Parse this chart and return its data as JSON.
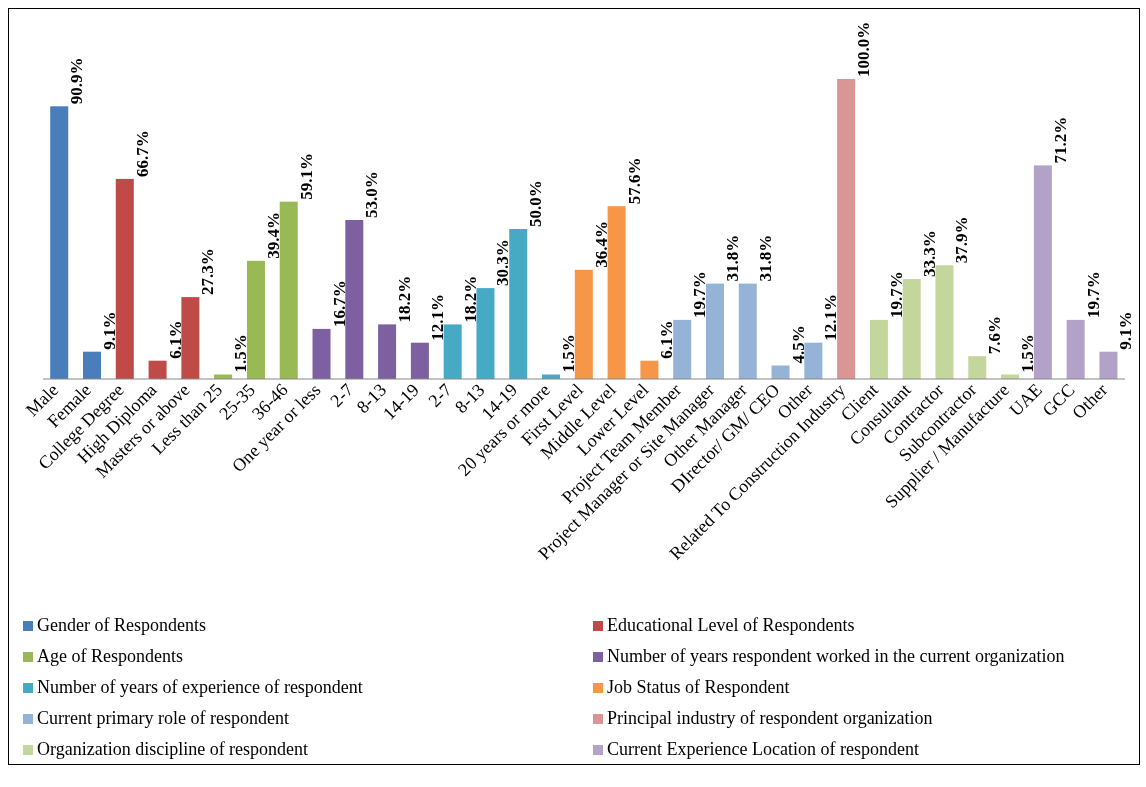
{
  "chart_data": {
    "type": "bar",
    "categories": [
      "Male",
      "Female",
      "College Degree",
      "High Diploma",
      "Masters or above",
      "Less than 25",
      "25-35",
      "36-46",
      "One year or less",
      "2-7",
      "8-13",
      "14-19",
      "2-7",
      "8-13",
      "14-19",
      "20 years or more",
      "First Level",
      "Middle Level",
      "Lower Level",
      "Project Team Member",
      "Project Manager or Site Manager",
      "Other Manager",
      "DIrector/ GM/ CEO",
      "Other",
      "Related To Construction Industry",
      "Client",
      "Consultant",
      "Contractor",
      "Subcontractor",
      "Supplier / Manufacture",
      "UAE",
      "GCC",
      "Other"
    ],
    "series": [
      {
        "name": "Gender of Respondents",
        "color": "#4a7ebb",
        "values": [
          90.9,
          9.1,
          null,
          null,
          null,
          null,
          null,
          null,
          null,
          null,
          null,
          null,
          null,
          null,
          null,
          null,
          null,
          null,
          null,
          null,
          null,
          null,
          null,
          null,
          null,
          null,
          null,
          null,
          null,
          null,
          null,
          null,
          null
        ],
        "value_labels": [
          "90.9%",
          "9.1%",
          null,
          null,
          null,
          null,
          null,
          null,
          null,
          null,
          null,
          null,
          null,
          null,
          null,
          null,
          null,
          null,
          null,
          null,
          null,
          null,
          null,
          null,
          null,
          null,
          null,
          null,
          null,
          null,
          null,
          null,
          null
        ]
      },
      {
        "name": "Educational Level of Respondents",
        "color": "#be4b48",
        "values": [
          null,
          null,
          66.7,
          6.1,
          27.3,
          null,
          null,
          null,
          null,
          null,
          null,
          null,
          null,
          null,
          null,
          null,
          null,
          null,
          null,
          null,
          null,
          null,
          null,
          null,
          null,
          null,
          null,
          null,
          null,
          null,
          null,
          null,
          null
        ],
        "value_labels": [
          null,
          null,
          "66.7%",
          "6.1%",
          "27.3%",
          null,
          null,
          null,
          null,
          null,
          null,
          null,
          null,
          null,
          null,
          null,
          null,
          null,
          null,
          null,
          null,
          null,
          null,
          null,
          null,
          null,
          null,
          null,
          null,
          null,
          null,
          null,
          null
        ]
      },
      {
        "name": "Age of Respondents",
        "color": "#98b954",
        "values": [
          null,
          null,
          null,
          null,
          null,
          1.5,
          39.4,
          59.1,
          null,
          null,
          null,
          null,
          null,
          null,
          null,
          null,
          null,
          null,
          null,
          null,
          null,
          null,
          null,
          null,
          null,
          null,
          null,
          null,
          null,
          null,
          null,
          null,
          null
        ],
        "value_labels": [
          null,
          null,
          null,
          null,
          null,
          "1.5%",
          "39.4%",
          "59.1%",
          null,
          null,
          null,
          null,
          null,
          null,
          null,
          null,
          null,
          null,
          null,
          null,
          null,
          null,
          null,
          null,
          null,
          null,
          null,
          null,
          null,
          null,
          null,
          null,
          null
        ]
      },
      {
        "name": "Number of years respondent worked in the current organization",
        "color": "#7d60a0",
        "values": [
          null,
          null,
          null,
          null,
          null,
          null,
          null,
          null,
          16.7,
          53.0,
          18.2,
          12.1,
          null,
          null,
          null,
          null,
          null,
          null,
          null,
          null,
          null,
          null,
          null,
          null,
          null,
          null,
          null,
          null,
          null,
          null,
          null,
          null,
          null
        ],
        "value_labels": [
          null,
          null,
          null,
          null,
          null,
          null,
          null,
          null,
          "16.7%",
          "53.0%",
          "18.2%",
          "12.1%",
          null,
          null,
          null,
          null,
          null,
          null,
          null,
          null,
          null,
          null,
          null,
          null,
          null,
          null,
          null,
          null,
          null,
          null,
          null,
          null,
          null
        ]
      },
      {
        "name": "Number of years of experience of respondent",
        "color": "#46aac5",
        "values": [
          null,
          null,
          null,
          null,
          null,
          null,
          null,
          null,
          null,
          null,
          null,
          null,
          18.2,
          30.3,
          50.0,
          1.5,
          null,
          null,
          null,
          null,
          null,
          null,
          null,
          null,
          null,
          null,
          null,
          null,
          null,
          null,
          null,
          null,
          null
        ],
        "value_labels": [
          null,
          null,
          null,
          null,
          null,
          null,
          null,
          null,
          null,
          null,
          null,
          null,
          "18.2%",
          "30.3%",
          "50.0%",
          "1.5%",
          null,
          null,
          null,
          null,
          null,
          null,
          null,
          null,
          null,
          null,
          null,
          null,
          null,
          null,
          null,
          null,
          null
        ]
      },
      {
        "name": "Job Status of Respondent",
        "color": "#f79646",
        "values": [
          null,
          null,
          null,
          null,
          null,
          null,
          null,
          null,
          null,
          null,
          null,
          null,
          null,
          null,
          null,
          null,
          36.4,
          57.6,
          6.1,
          null,
          null,
          null,
          null,
          null,
          null,
          null,
          null,
          null,
          null,
          null,
          null,
          null,
          null
        ],
        "value_labels": [
          null,
          null,
          null,
          null,
          null,
          null,
          null,
          null,
          null,
          null,
          null,
          null,
          null,
          null,
          null,
          null,
          "36.4%",
          "57.6%",
          "6.1%",
          null,
          null,
          null,
          null,
          null,
          null,
          null,
          null,
          null,
          null,
          null,
          null,
          null,
          null
        ]
      },
      {
        "name": "Current primary role  of respondent",
        "color": "#95b3d7",
        "values": [
          null,
          null,
          null,
          null,
          null,
          null,
          null,
          null,
          null,
          null,
          null,
          null,
          null,
          null,
          null,
          null,
          null,
          null,
          null,
          19.7,
          31.8,
          31.8,
          4.5,
          12.1,
          null,
          null,
          null,
          null,
          null,
          null,
          null,
          null,
          null
        ],
        "value_labels": [
          null,
          null,
          null,
          null,
          null,
          null,
          null,
          null,
          null,
          null,
          null,
          null,
          null,
          null,
          null,
          null,
          null,
          null,
          null,
          "19.7%",
          "31.8%",
          "31.8%",
          "4.5%",
          "12.1%",
          null,
          null,
          null,
          null,
          null,
          null,
          null,
          null,
          null
        ]
      },
      {
        "name": "Principal industry of respondent organization",
        "color": "#d99694",
        "values": [
          null,
          null,
          null,
          null,
          null,
          null,
          null,
          null,
          null,
          null,
          null,
          null,
          null,
          null,
          null,
          null,
          null,
          null,
          null,
          null,
          null,
          null,
          null,
          null,
          100.0,
          null,
          null,
          null,
          null,
          null,
          null,
          null,
          null
        ],
        "value_labels": [
          null,
          null,
          null,
          null,
          null,
          null,
          null,
          null,
          null,
          null,
          null,
          null,
          null,
          null,
          null,
          null,
          null,
          null,
          null,
          null,
          null,
          null,
          null,
          null,
          "100.0%",
          null,
          null,
          null,
          null,
          null,
          null,
          null,
          null
        ]
      },
      {
        "name": "Organization discipline of respondent",
        "color": "#c3d69b",
        "values": [
          null,
          null,
          null,
          null,
          null,
          null,
          null,
          null,
          null,
          null,
          null,
          null,
          null,
          null,
          null,
          null,
          null,
          null,
          null,
          null,
          null,
          null,
          null,
          null,
          null,
          19.7,
          33.3,
          37.9,
          7.6,
          1.5,
          null,
          null,
          null
        ],
        "value_labels": [
          null,
          null,
          null,
          null,
          null,
          null,
          null,
          null,
          null,
          null,
          null,
          null,
          null,
          null,
          null,
          null,
          null,
          null,
          null,
          null,
          null,
          null,
          null,
          null,
          null,
          "19.7%",
          "33.3%",
          "37.9%",
          "7.6%",
          "1.5%",
          null,
          null,
          null
        ]
      },
      {
        "name": "Current Experience Location of respondent",
        "color": "#b3a2c7",
        "values": [
          null,
          null,
          null,
          null,
          null,
          null,
          null,
          null,
          null,
          null,
          null,
          null,
          null,
          null,
          null,
          null,
          null,
          null,
          null,
          null,
          null,
          null,
          null,
          null,
          null,
          null,
          null,
          null,
          null,
          null,
          71.2,
          19.7,
          9.1
        ],
        "value_labels": [
          null,
          null,
          null,
          null,
          null,
          null,
          null,
          null,
          null,
          null,
          null,
          null,
          null,
          null,
          null,
          null,
          null,
          null,
          null,
          null,
          null,
          null,
          null,
          null,
          null,
          null,
          null,
          null,
          null,
          null,
          "71.2%",
          "19.7%",
          "9.1%"
        ]
      }
    ],
    "legend": "bottom"
  }
}
